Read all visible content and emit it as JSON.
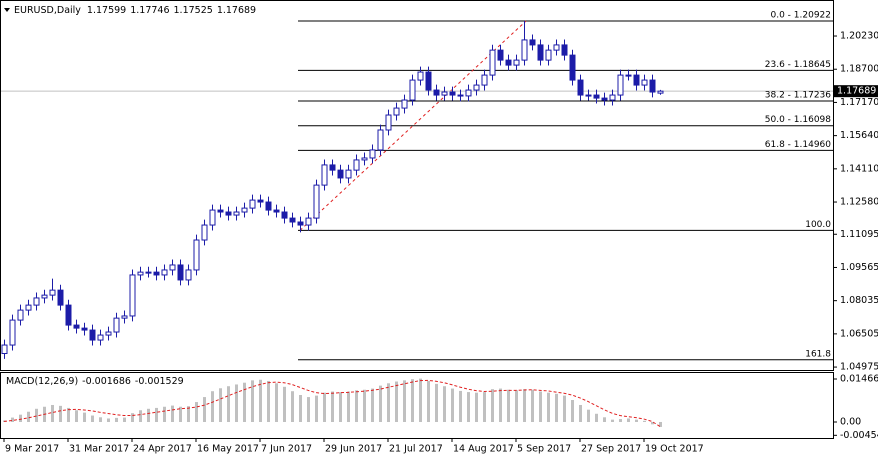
{
  "chart_data": {
    "type": "candlestick",
    "symbol": "EURUSD,Daily",
    "color": "#1c1ca8",
    "ylim": [
      1.0484,
      1.2189
    ],
    "yticks": [
      {
        "value": 1.2023,
        "label": "1.20230"
      },
      {
        "value": 1.187,
        "label": "1.18700"
      },
      {
        "value": 1.1717,
        "label": "1.17170"
      },
      {
        "value": 1.1564,
        "label": "1.15640"
      },
      {
        "value": 1.1411,
        "label": "1.14110"
      },
      {
        "value": 1.1258,
        "label": "1.12580"
      },
      1.11095,
      1.09565,
      1.08035,
      1.06505,
      1.04975
    ],
    "x_labels": [
      "9 Mar 2017",
      "31 Mar 2017",
      "24 Apr 2017",
      "16 May 2017",
      "7 Jun 2017",
      "29 Jun 2017",
      "21 Jul 2017",
      "14 Aug 2017",
      "5 Sep 2017",
      "27 Sep 2017",
      "19 Oct 2017"
    ],
    "candles": [
      [
        1.056,
        1.0624,
        1.0535,
        1.0599
      ],
      [
        1.0599,
        1.0739,
        1.0574,
        1.0714
      ],
      [
        1.0714,
        1.0785,
        1.0689,
        1.076
      ],
      [
        1.076,
        1.0808,
        1.0735,
        1.0783
      ],
      [
        1.0783,
        1.0841,
        1.0758,
        1.0816
      ],
      [
        1.0816,
        1.0854,
        1.0791,
        1.0829
      ],
      [
        1.0829,
        1.0905,
        1.0804,
        1.0852
      ],
      [
        1.0852,
        1.0877,
        1.0758,
        1.0783
      ],
      [
        1.0783,
        1.0808,
        1.0666,
        1.0691
      ],
      [
        1.0691,
        1.0716,
        1.0652,
        1.0677
      ],
      [
        1.0677,
        1.0702,
        1.0643,
        1.0668
      ],
      [
        1.0668,
        1.0693,
        1.0597,
        1.0622
      ],
      [
        1.0622,
        1.067,
        1.0597,
        1.0645
      ],
      [
        1.0645,
        1.0684,
        1.062,
        1.0659
      ],
      [
        1.0659,
        1.0748,
        1.0634,
        1.0723
      ],
      [
        1.0723,
        1.0758,
        1.0698,
        1.0733
      ],
      [
        1.0733,
        1.0947,
        1.0708,
        1.0922
      ],
      [
        1.0922,
        1.096,
        1.0897,
        1.0935
      ],
      [
        1.0935,
        1.096,
        1.091,
        1.0935
      ],
      [
        1.0935,
        1.096,
        1.0897,
        1.0922
      ],
      [
        1.0922,
        1.097,
        1.0897,
        1.0945
      ],
      [
        1.0945,
        1.0993,
        1.092,
        1.0968
      ],
      [
        1.0968,
        1.0993,
        1.0874,
        1.0899
      ],
      [
        1.0899,
        1.097,
        1.0874,
        1.0945
      ],
      [
        1.0945,
        1.1108,
        1.092,
        1.1083
      ],
      [
        1.1083,
        1.1177,
        1.1058,
        1.1152
      ],
      [
        1.1152,
        1.1246,
        1.1127,
        1.1221
      ],
      [
        1.1221,
        1.1246,
        1.1187,
        1.1212
      ],
      [
        1.1212,
        1.1237,
        1.1173,
        1.1198
      ],
      [
        1.1198,
        1.1237,
        1.1173,
        1.1212
      ],
      [
        1.1212,
        1.1255,
        1.1187,
        1.123
      ],
      [
        1.123,
        1.1292,
        1.1205,
        1.1267
      ],
      [
        1.1267,
        1.1292,
        1.1233,
        1.1258
      ],
      [
        1.1258,
        1.1283,
        1.1196,
        1.1221
      ],
      [
        1.1221,
        1.1246,
        1.1187,
        1.1212
      ],
      [
        1.1212,
        1.1237,
        1.1159,
        1.1184
      ],
      [
        1.1184,
        1.1209,
        1.1141,
        1.1166
      ],
      [
        1.1166,
        1.1191,
        1.1118,
        1.1152
      ],
      [
        1.1152,
        1.1209,
        1.1127,
        1.1184
      ],
      [
        1.1184,
        1.1361,
        1.1159,
        1.1336
      ],
      [
        1.1336,
        1.1454,
        1.1311,
        1.1429
      ],
      [
        1.1429,
        1.1454,
        1.138,
        1.1405
      ],
      [
        1.1405,
        1.143,
        1.1344,
        1.1369
      ],
      [
        1.1369,
        1.143,
        1.1344,
        1.1405
      ],
      [
        1.1405,
        1.1477,
        1.138,
        1.1452
      ],
      [
        1.1452,
        1.1486,
        1.1427,
        1.1461
      ],
      [
        1.1461,
        1.1523,
        1.1436,
        1.1498
      ],
      [
        1.1498,
        1.1615,
        1.1473,
        1.159
      ],
      [
        1.159,
        1.1684,
        1.1565,
        1.1659
      ],
      [
        1.1659,
        1.1716,
        1.1634,
        1.1691
      ],
      [
        1.1691,
        1.1753,
        1.1666,
        1.1728
      ],
      [
        1.1728,
        1.1845,
        1.1703,
        1.182
      ],
      [
        1.182,
        1.1882,
        1.1795,
        1.1857
      ],
      [
        1.1857,
        1.1882,
        1.1749,
        1.1774
      ],
      [
        1.1774,
        1.1799,
        1.1726,
        1.1751
      ],
      [
        1.1751,
        1.179,
        1.1726,
        1.1765
      ],
      [
        1.1765,
        1.179,
        1.1726,
        1.1751
      ],
      [
        1.1751,
        1.1776,
        1.1722,
        1.1747
      ],
      [
        1.1747,
        1.1799,
        1.1722,
        1.1774
      ],
      [
        1.1774,
        1.1822,
        1.1749,
        1.1797
      ],
      [
        1.1797,
        1.1868,
        1.1772,
        1.1843
      ],
      [
        1.1843,
        1.1983,
        1.1818,
        1.1958
      ],
      [
        1.1958,
        1.1983,
        1.1887,
        1.1912
      ],
      [
        1.1912,
        1.1937,
        1.1864,
        1.1889
      ],
      [
        1.1889,
        1.1937,
        1.1864,
        1.1912
      ],
      [
        1.1912,
        1.2092,
        1.1887,
        1.2005
      ],
      [
        1.2005,
        1.203,
        1.1957,
        1.1982
      ],
      [
        1.1982,
        1.2007,
        1.1887,
        1.1912
      ],
      [
        1.1912,
        1.1983,
        1.1887,
        1.1958
      ],
      [
        1.1958,
        1.2007,
        1.1933,
        1.1982
      ],
      [
        1.1982,
        1.2007,
        1.191,
        1.1935
      ],
      [
        1.1935,
        1.196,
        1.1795,
        1.182
      ],
      [
        1.182,
        1.1845,
        1.1726,
        1.1751
      ],
      [
        1.1751,
        1.1776,
        1.1726,
        1.1751
      ],
      [
        1.1751,
        1.1776,
        1.1712,
        1.1737
      ],
      [
        1.1737,
        1.1762,
        1.1703,
        1.1728
      ],
      [
        1.1728,
        1.1776,
        1.1703,
        1.1751
      ],
      [
        1.1751,
        1.1868,
        1.1726,
        1.1843
      ],
      [
        1.1843,
        1.1868,
        1.1818,
        1.1843
      ],
      [
        1.1843,
        1.1868,
        1.1772,
        1.1797
      ],
      [
        1.1797,
        1.1845,
        1.1772,
        1.182
      ],
      [
        1.182,
        1.1845,
        1.174,
        1.1765
      ],
      [
        1.17599,
        1.17746,
        1.17525,
        1.17689
      ]
    ],
    "fib": {
      "color": "#000000",
      "trend_color": "#e02020",
      "levels": [
        {
          "label": "0.0 - 1.20922",
          "value": 1.20922
        },
        {
          "label": "23.6 - 1.18645",
          "value": 1.18645
        },
        {
          "label": "38.2 - 1.17236",
          "value": 1.17236
        },
        {
          "label": "50.0 - 1.16098",
          "value": 1.16098
        },
        {
          "label": "61.8 - 1.14960",
          "value": 1.1496
        },
        {
          "label": "100.0",
          "value": 1.11274
        },
        {
          "label": "161.8",
          "value": 1.05312
        }
      ]
    },
    "macd": {
      "title": "MACD(12,26,9)",
      "ylim": [
        -0.00546,
        0.01705
      ],
      "yticks": [
        0.01466,
        {
          "value": 0,
          "label": "0.00"
        },
        -0.004545
      ],
      "histogram": {
        "color": "#c0c0c0",
        "values": [
          0.0005,
          0.0015,
          0.0025,
          0.0035,
          0.0045,
          0.0052,
          0.0058,
          0.0055,
          0.0048,
          0.004,
          0.0032,
          0.0022,
          0.0016,
          0.0012,
          0.0014,
          0.0015,
          0.003,
          0.004,
          0.0045,
          0.0048,
          0.0052,
          0.0056,
          0.0052,
          0.0054,
          0.0068,
          0.0085,
          0.0105,
          0.0115,
          0.0122,
          0.0128,
          0.0134,
          0.0142,
          0.0144,
          0.014,
          0.0132,
          0.012,
          0.0105,
          0.0092,
          0.0085,
          0.009,
          0.01,
          0.0104,
          0.0102,
          0.0104,
          0.0108,
          0.011,
          0.0114,
          0.0124,
          0.0132,
          0.0138,
          0.0142,
          0.0146,
          0.0148,
          0.014,
          0.013,
          0.0122,
          0.0114,
          0.0106,
          0.0102,
          0.01,
          0.0102,
          0.0112,
          0.0114,
          0.011,
          0.0108,
          0.0112,
          0.011,
          0.0104,
          0.01,
          0.0096,
          0.009,
          0.0075,
          0.0058,
          0.0042,
          0.0028,
          0.0016,
          0.0008,
          0.001,
          0.0012,
          0.0008,
          0.0004,
          -0.0008,
          -0.001686
        ]
      },
      "signal": {
        "color": "#e02020",
        "values": [
          0.0002,
          0.0005,
          0.0009,
          0.0014,
          0.002,
          0.0026,
          0.0032,
          0.0038,
          0.0042,
          0.0043,
          0.0041,
          0.0038,
          0.0033,
          0.0029,
          0.0025,
          0.0022,
          0.0022,
          0.0025,
          0.0029,
          0.0033,
          0.0037,
          0.0041,
          0.0045,
          0.0047,
          0.0051,
          0.0057,
          0.0067,
          0.0078,
          0.0089,
          0.01,
          0.011,
          0.012,
          0.0128,
          0.0134,
          0.0136,
          0.0134,
          0.0128,
          0.0118,
          0.0108,
          0.01,
          0.0097,
          0.0098,
          0.01,
          0.0101,
          0.0103,
          0.0105,
          0.0108,
          0.0112,
          0.0118,
          0.0124,
          0.013,
          0.0136,
          0.0141,
          0.0142,
          0.0139,
          0.0134,
          0.0127,
          0.0119,
          0.0112,
          0.0107,
          0.0104,
          0.0105,
          0.0107,
          0.0108,
          0.0108,
          0.0109,
          0.011,
          0.0108,
          0.0106,
          0.0102,
          0.0098,
          0.0092,
          0.0082,
          0.007,
          0.0056,
          0.0042,
          0.003,
          0.0022,
          0.0018,
          0.0015,
          0.001,
          0.0002,
          -0.001529
        ]
      }
    }
  }
}
